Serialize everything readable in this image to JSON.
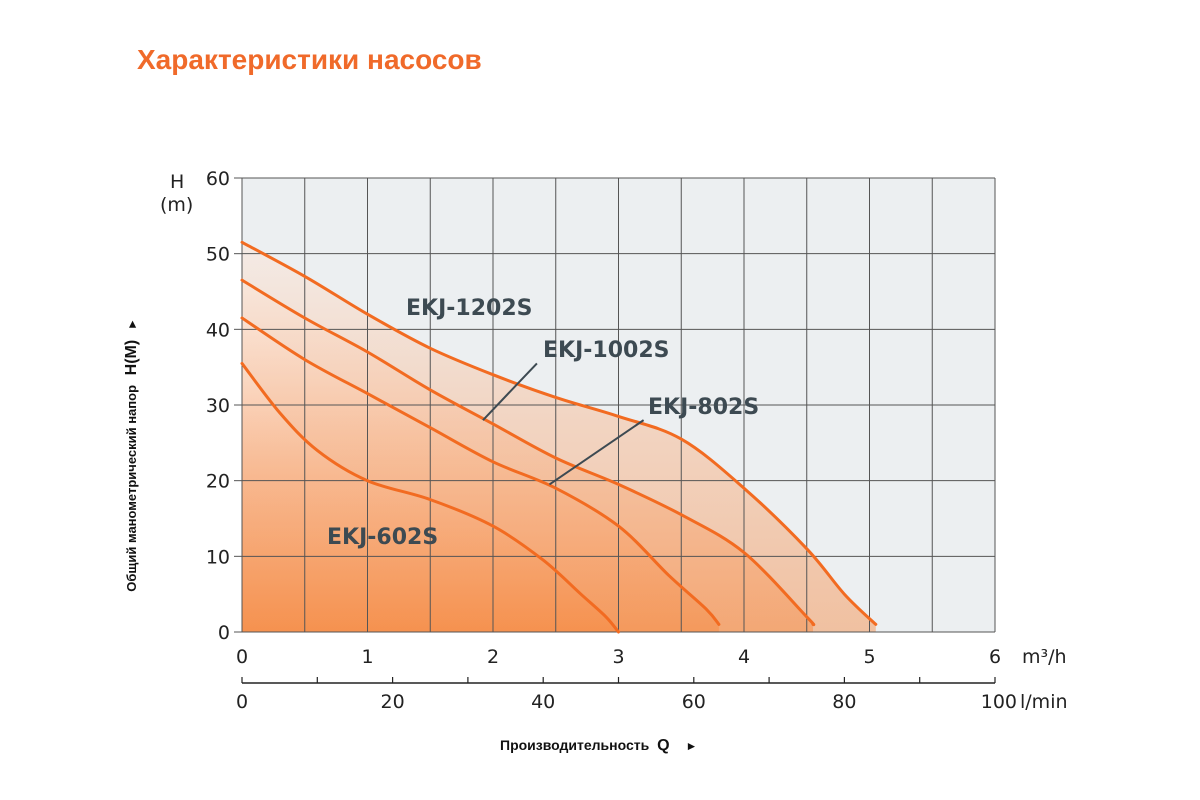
{
  "title": "Характеристики насосов",
  "chart_data": {
    "type": "line",
    "title": "Характеристики насосов",
    "ylabel": "Общий манометрический напор",
    "ylabel_symbol": "H(М)",
    "xlabel": "Производительность",
    "xlabel_symbol": "Q",
    "arrow_symbol": "►",
    "y_unit_top": "H",
    "y_unit_bottom": "(m)",
    "x_unit_primary": "m³/h",
    "x_unit_secondary": "l/min",
    "ylim": [
      0,
      60
    ],
    "xlim": [
      0,
      6
    ],
    "y_ticks": [
      "0",
      "10",
      "20",
      "30",
      "40",
      "50",
      "60"
    ],
    "x_ticks_m3h": [
      "0",
      "1",
      "2",
      "3",
      "4",
      "5",
      "6"
    ],
    "x_ticks_lmin": [
      "0",
      "20",
      "40",
      "60",
      "80",
      "100"
    ],
    "grid": true,
    "colors": {
      "line": "#f26b21",
      "fill_strong": "#f6883f",
      "fill_light": "#fde6d8",
      "plot_bg": "#eceff1",
      "grid": "#555555",
      "title": "#f06a2a",
      "label": "#3d4a52"
    },
    "series": [
      {
        "name": "EKJ-602S",
        "x": [
          0,
          0.3,
          0.6,
          1.0,
          1.5,
          2.0,
          2.4,
          2.7,
          2.9,
          3.0
        ],
        "y": [
          35.5,
          29,
          24,
          20,
          17.5,
          14,
          9.5,
          5,
          2,
          0
        ]
      },
      {
        "name": "EKJ-802S",
        "x": [
          0,
          0.5,
          1.0,
          1.5,
          2.0,
          2.5,
          3.0,
          3.4,
          3.7,
          3.8
        ],
        "y": [
          41.5,
          36,
          31.5,
          27,
          22.5,
          19,
          14,
          7.5,
          3,
          1
        ]
      },
      {
        "name": "EKJ-1002S",
        "x": [
          0,
          0.5,
          1.0,
          1.5,
          2.0,
          2.5,
          3.0,
          3.5,
          4.0,
          4.5,
          4.55
        ],
        "y": [
          46.5,
          41.5,
          37,
          32,
          27.5,
          23,
          19.5,
          15.5,
          10.5,
          2,
          1
        ]
      },
      {
        "name": "EKJ-1202S",
        "x": [
          0,
          0.5,
          1.0,
          1.5,
          2.0,
          2.5,
          3.0,
          3.5,
          4.0,
          4.5,
          4.8,
          5.05
        ],
        "y": [
          51.5,
          47,
          42,
          37.5,
          34,
          31,
          28.5,
          25.5,
          19,
          11,
          5,
          1
        ]
      }
    ]
  }
}
